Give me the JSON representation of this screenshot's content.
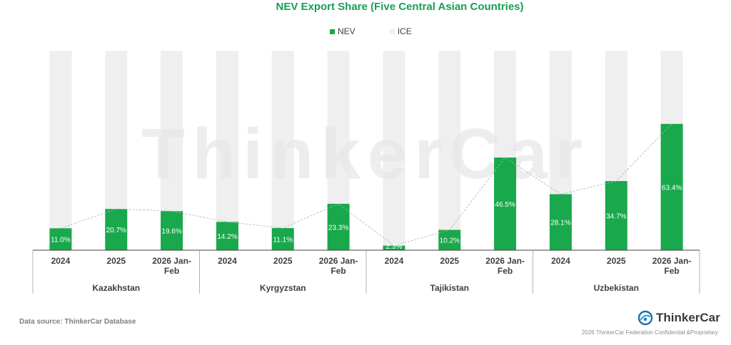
{
  "chart_data": {
    "type": "bar",
    "stacked": true,
    "title": "NEV Export Share (Five Central Asian Countries)",
    "legend": {
      "position": "top-center"
    },
    "groups": [
      {
        "name": "Kazakhstan",
        "categories": [
          "2024",
          "2025",
          "2026 Jan-Feb"
        ]
      },
      {
        "name": "Kyrgyzstan",
        "categories": [
          "2024",
          "2025",
          "2026 Jan-Feb"
        ]
      },
      {
        "name": "Tajikistan",
        "categories": [
          "2024",
          "2025",
          "2026 Jan-Feb"
        ]
      },
      {
        "name": "Uzbekistan",
        "categories": [
          "2024",
          "2025",
          "2026 Jan-Feb"
        ]
      }
    ],
    "series": [
      {
        "name": "NEV",
        "color": "#19a84c",
        "values": [
          11.0,
          20.7,
          19.6,
          14.2,
          11.1,
          23.3,
          2.3,
          10.2,
          46.5,
          28.1,
          34.7,
          63.4
        ],
        "labels": [
          "11.0%",
          "20.7%",
          "19.6%",
          "14.2%",
          "11.1%",
          "23.3%",
          "2.3%",
          "10.2%",
          "46.5%",
          "28.1%",
          "34.7%",
          "63.4%"
        ]
      },
      {
        "name": "ICE",
        "color": "#efefef",
        "values": [
          89.0,
          79.3,
          80.4,
          85.8,
          88.9,
          76.7,
          97.7,
          89.8,
          53.5,
          71.9,
          65.3,
          36.6
        ]
      }
    ],
    "ylim": [
      0,
      100
    ],
    "xlabel": "",
    "ylabel": "",
    "grid": false,
    "trend_line": "dashed line connecting NEV bar tops",
    "watermark": "ThinkerCar"
  },
  "footer": {
    "source": "Data source: ThinkerCar Database",
    "logo_text": "ThinkerCar",
    "confidential": "2026 ThinkerCar Federation Confidential &Proprietary"
  },
  "colors": {
    "title": "#1a9e52",
    "axis": "#404040",
    "trend_line": "#b0b0b0",
    "watermark": "#e7e7e7"
  },
  "icons": [
    "thinkercar-logo-icon"
  ]
}
